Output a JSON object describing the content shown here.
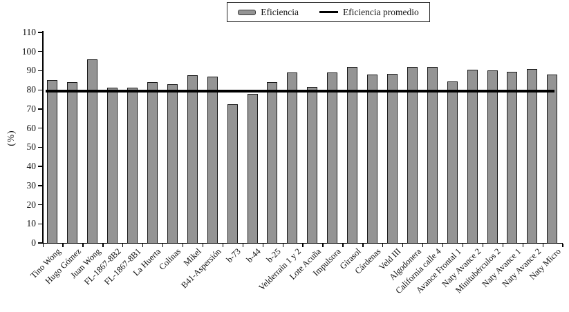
{
  "figure_title": "",
  "ylabel_text": "(%)",
  "legend": {
    "bar_label": "Eficiencia",
    "line_label": "Eficiencia promedio"
  },
  "colors": {
    "bar_fill": "#949494",
    "bar_border": "#1a1a1a",
    "average_line": "#000000",
    "axis": "#000000",
    "legend_border": "#222222",
    "text": "#111111"
  },
  "chart_data": {
    "type": "bar",
    "title": "",
    "xlabel": "",
    "ylabel": "(%)",
    "ylim": [
      0,
      110
    ],
    "ytick_step": 10,
    "grid": false,
    "legend_position": "top-center",
    "categories": [
      "Tino Wong",
      "Hugo Gómez",
      "Juan Wong",
      "FL-1867-8B2",
      "FL-1867-8B1",
      "La Huerta",
      "Colinas",
      "Mikel",
      "B41-Aspersión",
      "b-73",
      "b-44",
      "b-25",
      "Velderrain 1 y 2",
      "Lote Acuña",
      "Impulsora",
      "Girasol",
      "Cárdenas",
      "Veld III",
      "Algodonera",
      "California calle 4",
      "Avance Frontal 1",
      "Naty Avance 2",
      "Minitubérculos 2",
      "Naty Avance 1",
      "Naty Avance 2",
      "Naty Micro"
    ],
    "series": [
      {
        "name": "Eficiencia",
        "type": "bar",
        "values": [
          85,
          84,
          96,
          81,
          81,
          84,
          83,
          87.5,
          87,
          72.5,
          78,
          84,
          89,
          81.5,
          89,
          92,
          88,
          88.5,
          92,
          92,
          84.5,
          90.5,
          90,
          89.5,
          91,
          88
        ]
      },
      {
        "name": "Eficiencia promedio",
        "type": "hline",
        "value": 79.5
      }
    ]
  }
}
